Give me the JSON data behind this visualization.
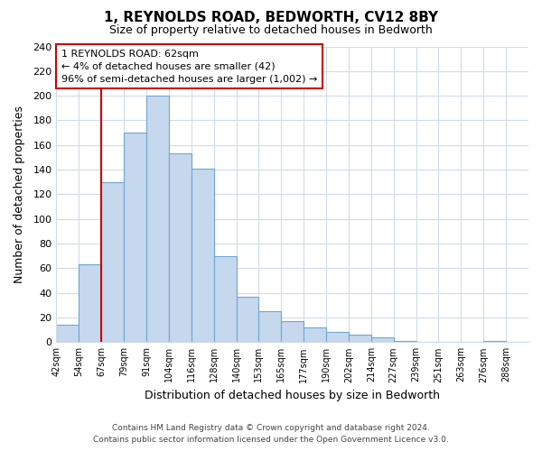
{
  "title": "1, REYNOLDS ROAD, BEDWORTH, CV12 8BY",
  "subtitle": "Size of property relative to detached houses in Bedworth",
  "xlabel": "Distribution of detached houses by size in Bedworth",
  "ylabel": "Number of detached properties",
  "footer_line1": "Contains HM Land Registry data © Crown copyright and database right 2024.",
  "footer_line2": "Contains public sector information licensed under the Open Government Licence v3.0.",
  "bin_labels": [
    "42sqm",
    "54sqm",
    "67sqm",
    "79sqm",
    "91sqm",
    "104sqm",
    "116sqm",
    "128sqm",
    "140sqm",
    "153sqm",
    "165sqm",
    "177sqm",
    "190sqm",
    "202sqm",
    "214sqm",
    "227sqm",
    "239sqm",
    "251sqm",
    "263sqm",
    "276sqm",
    "288sqm"
  ],
  "bar_heights": [
    14,
    63,
    130,
    170,
    200,
    153,
    141,
    70,
    37,
    25,
    17,
    12,
    8,
    6,
    4,
    1,
    0,
    0,
    0,
    1,
    0
  ],
  "bar_color": "#c5d8ee",
  "bar_edge_color": "#6ea6d0",
  "ylim": [
    0,
    240
  ],
  "yticks": [
    0,
    20,
    40,
    60,
    80,
    100,
    120,
    140,
    160,
    180,
    200,
    220,
    240
  ],
  "property_line_bin_index": 2,
  "annotation_title": "1 REYNOLDS ROAD: 62sqm",
  "annotation_line1": "← 4% of detached houses are smaller (42)",
  "annotation_line2": "96% of semi-detached houses are larger (1,002) →",
  "annotation_box_color": "#ffffff",
  "annotation_box_edge": "#cc0000",
  "vline_color": "#cc0000",
  "grid_color": "#d0dce8",
  "background_color": "#ffffff"
}
